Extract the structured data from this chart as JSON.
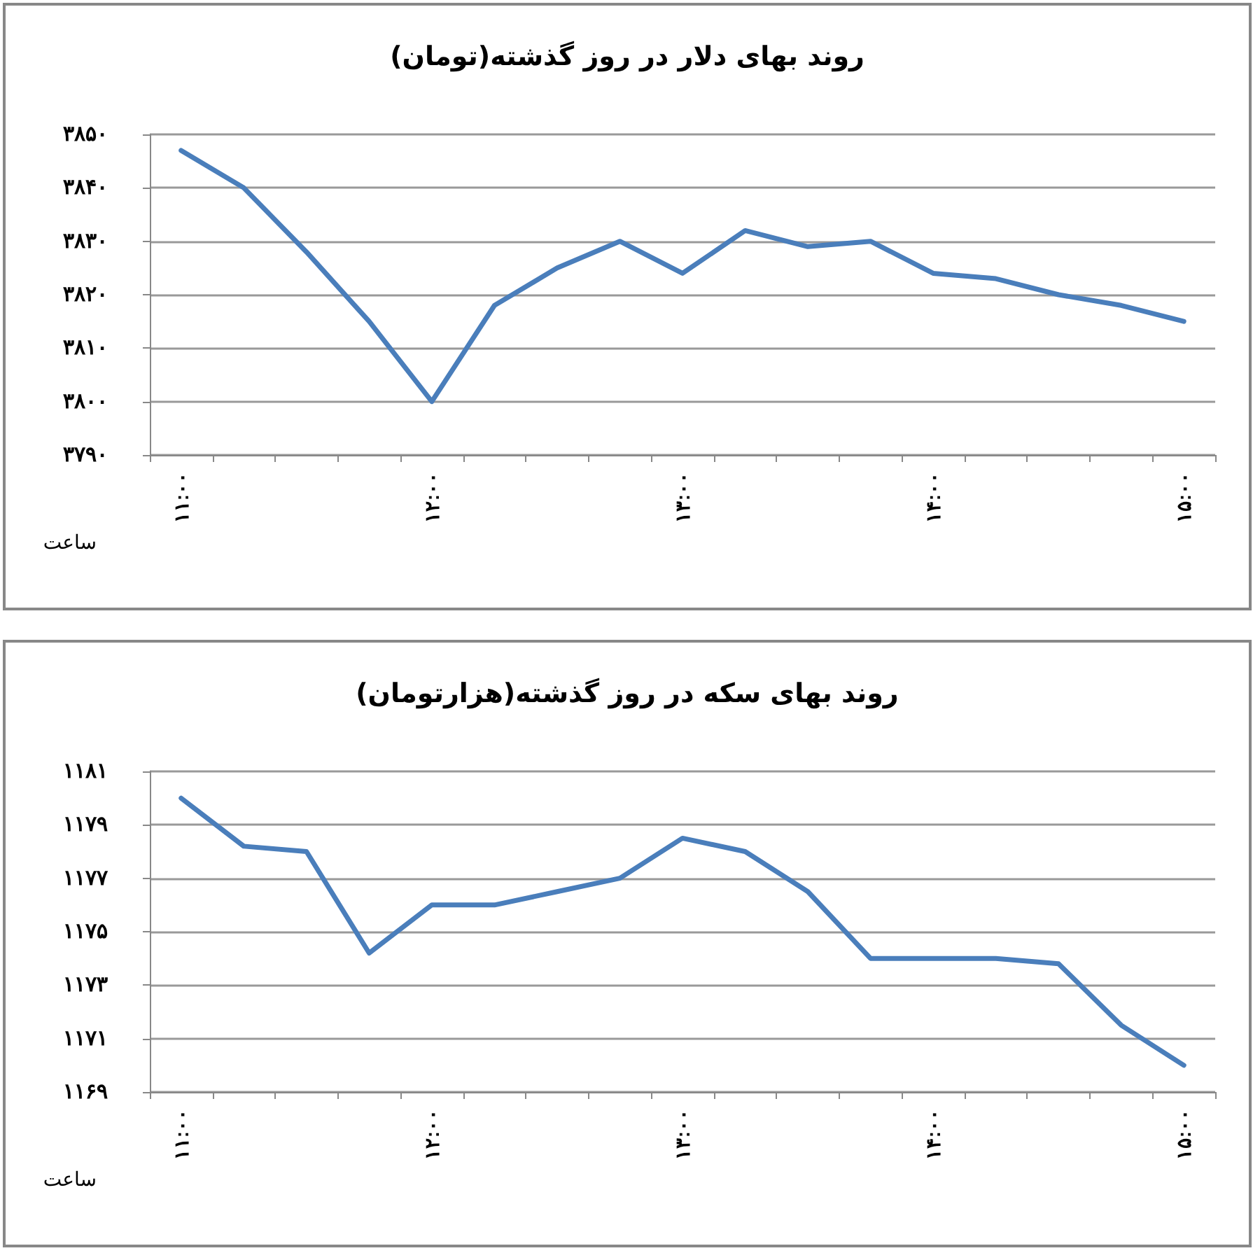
{
  "chart_data": [
    {
      "type": "line",
      "title": "روند بهای دلار در روز گذشته(تومان)",
      "xlabel": "ساعت",
      "categories": [
        "۱۱:۰۰",
        null,
        null,
        null,
        "۱۲:۰۰",
        null,
        null,
        null,
        "۱۳:۰۰",
        null,
        null,
        null,
        "۱۴:۰۰",
        null,
        null,
        null,
        "۱۵:۰۰"
      ],
      "series": [
        {
          "color": "#4a7ebb",
          "values": [
            3847,
            3840,
            3828,
            3815,
            3800,
            3818,
            3825,
            3830,
            3824,
            3832,
            3829,
            3830,
            3824,
            3823,
            3820,
            3818,
            3815
          ]
        }
      ],
      "ylim": [
        3790,
        3850
      ],
      "yticks": [
        {
          "value": 3790,
          "label": "۳۷۹۰"
        },
        {
          "value": 3800,
          "label": "۳۸۰۰"
        },
        {
          "value": 3810,
          "label": "۳۸۱۰"
        },
        {
          "value": 3820,
          "label": "۳۸۲۰"
        },
        {
          "value": 3830,
          "label": "۳۸۳۰"
        },
        {
          "value": 3840,
          "label": "۳۸۴۰"
        },
        {
          "value": 3850,
          "label": "۳۸۵۰"
        }
      ],
      "grid": "y",
      "marker": "none",
      "line_style": "solid"
    },
    {
      "type": "line",
      "title": "روند بهای سکه در روز گذشته(هزارتومان)",
      "xlabel": "ساعت",
      "categories": [
        "۱۱:۰۰",
        null,
        null,
        null,
        "۱۲:۰۰",
        null,
        null,
        null,
        "۱۳:۰۰",
        null,
        null,
        null,
        "۱۴:۰۰",
        null,
        null,
        null,
        "۱۵:۰۰"
      ],
      "series": [
        {
          "color": "#4a7ebb",
          "values": [
            1180,
            1178.2,
            1178,
            1174.2,
            1176,
            1176,
            1176.5,
            1177,
            1178.5,
            1178,
            1176.5,
            1174,
            1174,
            1174,
            1173.8,
            1171.5,
            1170
          ]
        }
      ],
      "ylim": [
        1169,
        1181
      ],
      "yticks": [
        {
          "value": 1169,
          "label": "۱۱۶۹"
        },
        {
          "value": 1171,
          "label": "۱۱۷۱"
        },
        {
          "value": 1173,
          "label": "۱۱۷۳"
        },
        {
          "value": 1175,
          "label": "۱۱۷۵"
        },
        {
          "value": 1177,
          "label": "۱۱۷۷"
        },
        {
          "value": 1179,
          "label": "۱۱۷۹"
        },
        {
          "value": 1181,
          "label": "۱۱۸۱"
        }
      ],
      "grid": "y",
      "marker": "none",
      "line_style": "solid"
    }
  ]
}
